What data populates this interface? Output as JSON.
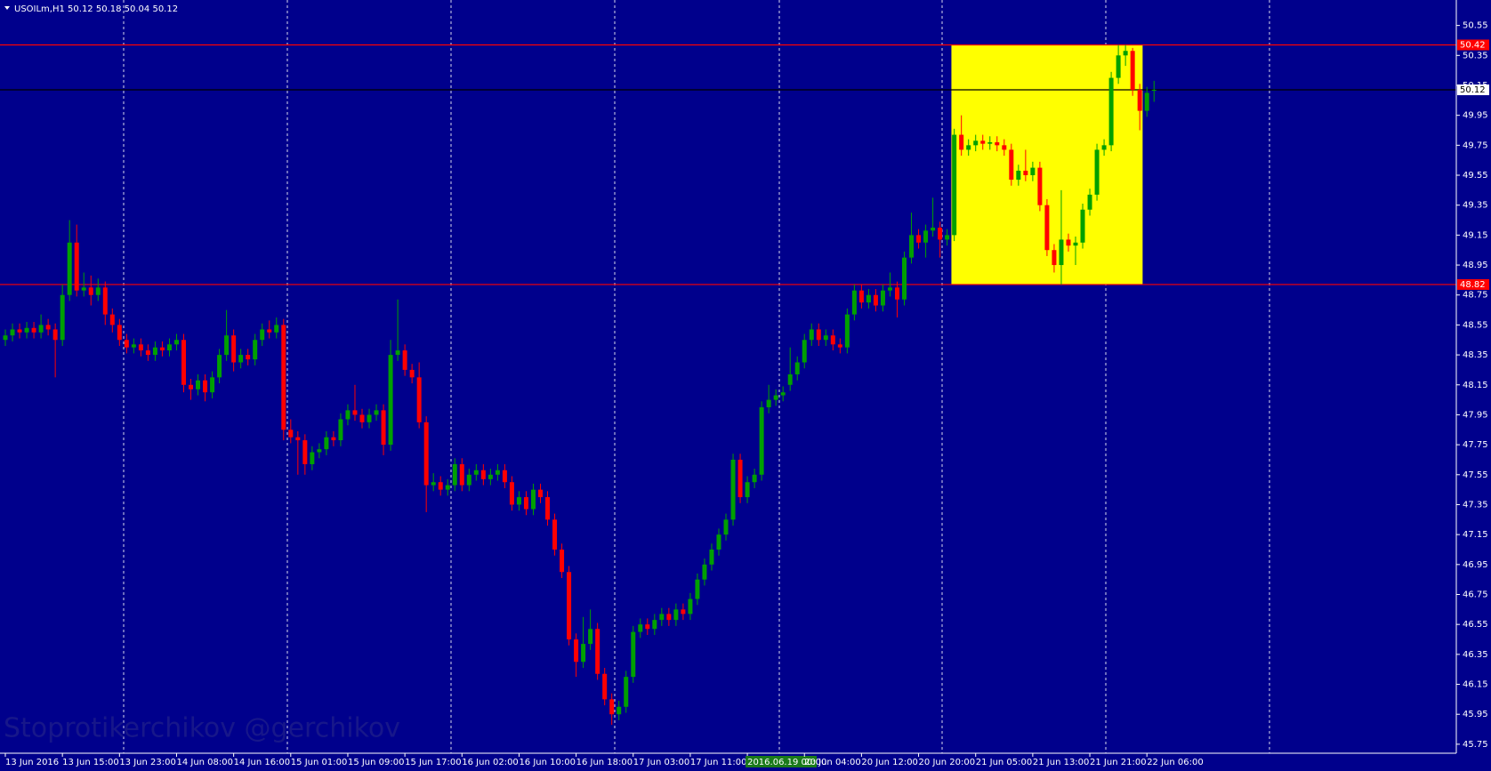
{
  "chart_data": {
    "type": "candlestick",
    "title": "USOILm,H1 50.12 50.18 50.04 50.12",
    "watermark": "Stoprotikerchikov @gerchikov",
    "background": "#00008c",
    "up_color": "#00a000",
    "down_color": "#ff0000",
    "grid": false,
    "ylim": [
      45.69,
      50.72
    ],
    "yticks": [
      50.55,
      50.35,
      50.15,
      49.95,
      49.75,
      49.55,
      49.35,
      49.15,
      48.95,
      48.75,
      48.55,
      48.35,
      48.15,
      47.95,
      47.75,
      47.55,
      47.35,
      47.15,
      46.95,
      46.75,
      46.55,
      46.35,
      46.15,
      45.95,
      45.75
    ],
    "xticks": [
      {
        "value": 0,
        "label": "13 Jun 2016"
      },
      {
        "value": 8,
        "label": "13 Jun 15:00"
      },
      {
        "value": 16,
        "label": "13 Jun 23:00"
      },
      {
        "value": 24,
        "label": "14 Jun 08:00"
      },
      {
        "value": 32,
        "label": "14 Jun 16:00"
      },
      {
        "value": 40,
        "label": "15 Jun 01:00"
      },
      {
        "value": 48,
        "label": "15 Jun 09:00"
      },
      {
        "value": 56,
        "label": "15 Jun 17:00"
      },
      {
        "value": 64,
        "label": "16 Jun 02:00"
      },
      {
        "value": 72,
        "label": "16 Jun 10:00"
      },
      {
        "value": 80,
        "label": "16 Jun 18:00"
      },
      {
        "value": 88,
        "label": "17 Jun 03:00"
      },
      {
        "value": 96,
        "label": "17 Jun 11:00"
      },
      {
        "value": 104,
        "label": "2016.06.19 00:00"
      },
      {
        "value": 112,
        "label": "20 Jun 04:00"
      },
      {
        "value": 120,
        "label": "20 Jun 12:00"
      },
      {
        "value": 128,
        "label": "20 Jun 20:00"
      },
      {
        "value": 136,
        "label": "21 Jun 05:00"
      },
      {
        "value": 144,
        "label": "21 Jun 13:00"
      },
      {
        "value": 152,
        "label": "21 Jun 21:00"
      },
      {
        "value": 160,
        "label": "22 Jun 06:00"
      }
    ],
    "levels": [
      {
        "value": 50.42,
        "color": "#ff0000"
      },
      {
        "value": 50.12,
        "color": "#000000"
      },
      {
        "value": 48.82,
        "color": "#ff0000"
      }
    ],
    "rectangle_color": "#ffff00",
    "candles": [
      [
        48.45,
        48.52,
        48.41,
        48.48
      ],
      [
        48.48,
        48.56,
        48.44,
        48.52
      ],
      [
        48.52,
        48.56,
        48.46,
        48.5
      ],
      [
        48.5,
        48.57,
        48.46,
        48.53
      ],
      [
        48.53,
        48.57,
        48.46,
        48.5
      ],
      [
        48.5,
        48.62,
        48.46,
        48.55
      ],
      [
        48.55,
        48.59,
        48.48,
        48.52
      ],
      [
        48.52,
        48.56,
        48.2,
        48.45
      ],
      [
        48.45,
        48.82,
        48.41,
        48.75
      ],
      [
        48.75,
        49.25,
        48.71,
        49.1
      ],
      [
        49.1,
        49.22,
        48.74,
        48.78
      ],
      [
        48.78,
        48.9,
        48.74,
        48.8
      ],
      [
        48.8,
        48.88,
        48.68,
        48.75
      ],
      [
        48.75,
        48.86,
        48.71,
        48.8
      ],
      [
        48.8,
        48.84,
        48.55,
        48.62
      ],
      [
        48.62,
        48.66,
        48.5,
        48.55
      ],
      [
        48.55,
        48.59,
        48.41,
        48.45
      ],
      [
        48.45,
        48.49,
        48.36,
        48.4
      ],
      [
        48.4,
        48.46,
        48.36,
        48.42
      ],
      [
        48.42,
        48.46,
        48.34,
        48.38
      ],
      [
        48.38,
        48.42,
        48.31,
        48.35
      ],
      [
        48.35,
        48.44,
        48.31,
        48.4
      ],
      [
        48.4,
        48.44,
        48.34,
        48.38
      ],
      [
        48.38,
        48.46,
        48.34,
        48.42
      ],
      [
        48.42,
        48.49,
        48.38,
        48.45
      ],
      [
        48.45,
        48.49,
        48.1,
        48.15
      ],
      [
        48.15,
        48.19,
        48.05,
        48.12
      ],
      [
        48.12,
        48.22,
        48.08,
        48.18
      ],
      [
        48.18,
        48.22,
        48.04,
        48.1
      ],
      [
        48.1,
        48.24,
        48.06,
        48.2
      ],
      [
        48.2,
        48.39,
        48.16,
        48.35
      ],
      [
        48.35,
        48.65,
        48.31,
        48.48
      ],
      [
        48.48,
        48.52,
        48.24,
        48.3
      ],
      [
        48.3,
        48.39,
        48.26,
        48.35
      ],
      [
        48.35,
        48.39,
        48.28,
        48.32
      ],
      [
        48.32,
        48.49,
        48.28,
        48.45
      ],
      [
        48.45,
        48.56,
        48.41,
        48.52
      ],
      [
        48.52,
        48.58,
        48.46,
        48.5
      ],
      [
        48.5,
        48.6,
        48.46,
        48.55
      ],
      [
        48.55,
        48.59,
        47.78,
        47.85
      ],
      [
        47.85,
        47.92,
        47.76,
        47.8
      ],
      [
        47.8,
        47.84,
        47.55,
        47.78
      ],
      [
        47.78,
        47.82,
        47.55,
        47.62
      ],
      [
        47.62,
        47.74,
        47.58,
        47.7
      ],
      [
        47.7,
        47.76,
        47.66,
        47.72
      ],
      [
        47.72,
        47.84,
        47.68,
        47.8
      ],
      [
        47.8,
        47.84,
        47.74,
        47.78
      ],
      [
        47.78,
        47.96,
        47.74,
        47.92
      ],
      [
        47.92,
        48.02,
        47.88,
        47.98
      ],
      [
        47.98,
        48.15,
        47.91,
        47.95
      ],
      [
        47.95,
        47.99,
        47.86,
        47.9
      ],
      [
        47.9,
        47.99,
        47.86,
        47.95
      ],
      [
        47.95,
        48.02,
        47.91,
        47.98
      ],
      [
        47.98,
        48.02,
        47.68,
        47.75
      ],
      [
        47.75,
        48.45,
        47.71,
        48.35
      ],
      [
        48.35,
        48.72,
        48.31,
        48.38
      ],
      [
        48.38,
        48.42,
        48.21,
        48.25
      ],
      [
        48.25,
        48.29,
        48.16,
        48.2
      ],
      [
        48.2,
        48.3,
        47.86,
        47.9
      ],
      [
        47.9,
        47.94,
        47.3,
        47.48
      ],
      [
        47.48,
        47.56,
        47.44,
        47.5
      ],
      [
        47.5,
        47.54,
        47.41,
        47.45
      ],
      [
        47.45,
        47.52,
        47.41,
        47.48
      ],
      [
        47.48,
        47.66,
        47.44,
        47.62
      ],
      [
        47.62,
        47.66,
        47.44,
        47.48
      ],
      [
        47.48,
        47.59,
        47.44,
        47.55
      ],
      [
        47.55,
        47.62,
        47.51,
        47.58
      ],
      [
        47.58,
        47.62,
        47.48,
        47.52
      ],
      [
        47.52,
        47.59,
        47.48,
        47.55
      ],
      [
        47.55,
        47.62,
        47.51,
        47.58
      ],
      [
        47.58,
        47.62,
        47.46,
        47.5
      ],
      [
        47.5,
        47.54,
        47.31,
        47.35
      ],
      [
        47.35,
        47.44,
        47.31,
        47.4
      ],
      [
        47.4,
        47.44,
        47.28,
        47.32
      ],
      [
        47.32,
        47.49,
        47.28,
        47.45
      ],
      [
        47.45,
        47.49,
        47.36,
        47.4
      ],
      [
        47.4,
        47.44,
        47.21,
        47.25
      ],
      [
        47.25,
        47.29,
        47.01,
        47.05
      ],
      [
        47.05,
        47.09,
        46.86,
        46.9
      ],
      [
        46.9,
        46.94,
        46.41,
        46.45
      ],
      [
        46.45,
        46.49,
        46.2,
        46.3
      ],
      [
        46.3,
        46.6,
        46.26,
        46.42
      ],
      [
        46.42,
        46.65,
        46.38,
        46.52
      ],
      [
        46.52,
        46.56,
        46.18,
        46.22
      ],
      [
        46.22,
        46.26,
        46.01,
        46.05
      ],
      [
        46.05,
        46.09,
        45.88,
        45.95
      ],
      [
        45.95,
        46.04,
        45.91,
        46.0
      ],
      [
        46.0,
        46.24,
        45.96,
        46.2
      ],
      [
        46.2,
        46.54,
        46.16,
        46.5
      ],
      [
        46.5,
        46.59,
        46.46,
        46.55
      ],
      [
        46.55,
        46.59,
        46.48,
        46.52
      ],
      [
        46.52,
        46.62,
        46.48,
        46.58
      ],
      [
        46.58,
        46.66,
        46.54,
        46.62
      ],
      [
        46.62,
        46.66,
        46.54,
        46.58
      ],
      [
        46.58,
        46.69,
        46.54,
        46.65
      ],
      [
        46.65,
        46.69,
        46.58,
        46.62
      ],
      [
        46.62,
        46.76,
        46.58,
        46.72
      ],
      [
        46.72,
        46.89,
        46.68,
        46.85
      ],
      [
        46.85,
        46.99,
        46.81,
        46.95
      ],
      [
        46.95,
        47.09,
        46.91,
        47.05
      ],
      [
        47.05,
        47.19,
        47.01,
        47.15
      ],
      [
        47.15,
        47.29,
        47.11,
        47.25
      ],
      [
        47.25,
        47.69,
        47.21,
        47.65
      ],
      [
        47.65,
        47.69,
        47.36,
        47.4
      ],
      [
        47.4,
        47.54,
        47.36,
        47.5
      ],
      [
        47.5,
        47.59,
        47.46,
        47.55
      ],
      [
        47.55,
        48.04,
        47.51,
        48.0
      ],
      [
        48.0,
        48.15,
        47.96,
        48.05
      ],
      [
        48.05,
        48.12,
        48.01,
        48.08
      ],
      [
        48.08,
        48.14,
        48.04,
        48.1
      ],
      [
        48.15,
        48.4,
        48.11,
        48.22
      ],
      [
        48.22,
        48.34,
        48.18,
        48.3
      ],
      [
        48.3,
        48.49,
        48.26,
        48.45
      ],
      [
        48.45,
        48.56,
        48.41,
        48.52
      ],
      [
        48.52,
        48.56,
        48.41,
        48.45
      ],
      [
        48.45,
        48.52,
        48.41,
        48.48
      ],
      [
        48.48,
        48.52,
        48.38,
        48.42
      ],
      [
        48.42,
        48.46,
        48.36,
        48.4
      ],
      [
        48.4,
        48.66,
        48.36,
        48.62
      ],
      [
        48.62,
        48.82,
        48.58,
        48.78
      ],
      [
        48.78,
        48.82,
        48.66,
        48.7
      ],
      [
        48.7,
        48.79,
        48.66,
        48.75
      ],
      [
        48.75,
        48.79,
        48.64,
        48.68
      ],
      [
        48.68,
        48.82,
        48.64,
        48.78
      ],
      [
        48.78,
        48.9,
        48.74,
        48.8
      ],
      [
        48.8,
        48.84,
        48.6,
        48.72
      ],
      [
        48.72,
        49.04,
        48.68,
        49.0
      ],
      [
        49.0,
        49.3,
        48.96,
        49.15
      ],
      [
        49.15,
        49.19,
        49.06,
        49.1
      ],
      [
        49.1,
        49.22,
        49.0,
        49.18
      ],
      [
        49.18,
        49.4,
        49.14,
        49.2
      ],
      [
        49.2,
        49.24,
        49.0,
        49.12
      ],
      [
        49.12,
        49.19,
        49.08,
        49.15
      ],
      [
        49.15,
        49.86,
        49.11,
        49.82
      ],
      [
        49.82,
        49.95,
        49.68,
        49.72
      ],
      [
        49.72,
        49.79,
        49.68,
        49.75
      ],
      [
        49.75,
        49.82,
        49.71,
        49.78
      ],
      [
        49.78,
        49.82,
        49.72,
        49.76
      ],
      [
        49.76,
        49.81,
        49.72,
        49.77
      ],
      [
        49.77,
        49.81,
        49.71,
        49.75
      ],
      [
        49.75,
        49.79,
        49.68,
        49.72
      ],
      [
        49.72,
        49.76,
        49.48,
        49.52
      ],
      [
        49.52,
        49.62,
        49.48,
        49.58
      ],
      [
        49.58,
        49.72,
        49.51,
        49.55
      ],
      [
        49.55,
        49.64,
        49.51,
        49.6
      ],
      [
        49.6,
        49.64,
        49.31,
        49.35
      ],
      [
        49.35,
        49.39,
        49.01,
        49.05
      ],
      [
        49.05,
        49.09,
        48.9,
        48.95
      ],
      [
        48.95,
        49.45,
        48.82,
        49.12
      ],
      [
        49.12,
        49.16,
        49.04,
        49.08
      ],
      [
        49.08,
        49.14,
        48.95,
        49.1
      ],
      [
        49.1,
        49.36,
        49.06,
        49.32
      ],
      [
        49.32,
        49.46,
        49.28,
        49.42
      ],
      [
        49.42,
        49.76,
        49.38,
        49.72
      ],
      [
        49.72,
        49.79,
        49.68,
        49.75
      ],
      [
        49.75,
        50.24,
        49.71,
        50.2
      ],
      [
        50.2,
        50.42,
        50.16,
        50.35
      ],
      [
        50.35,
        50.42,
        50.28,
        50.38
      ],
      [
        50.38,
        50.4,
        50.08,
        50.12
      ],
      [
        50.12,
        50.16,
        49.85,
        49.98
      ],
      [
        49.98,
        50.14,
        49.94,
        50.1
      ],
      [
        50.12,
        50.18,
        50.04,
        50.12
      ]
    ]
  }
}
